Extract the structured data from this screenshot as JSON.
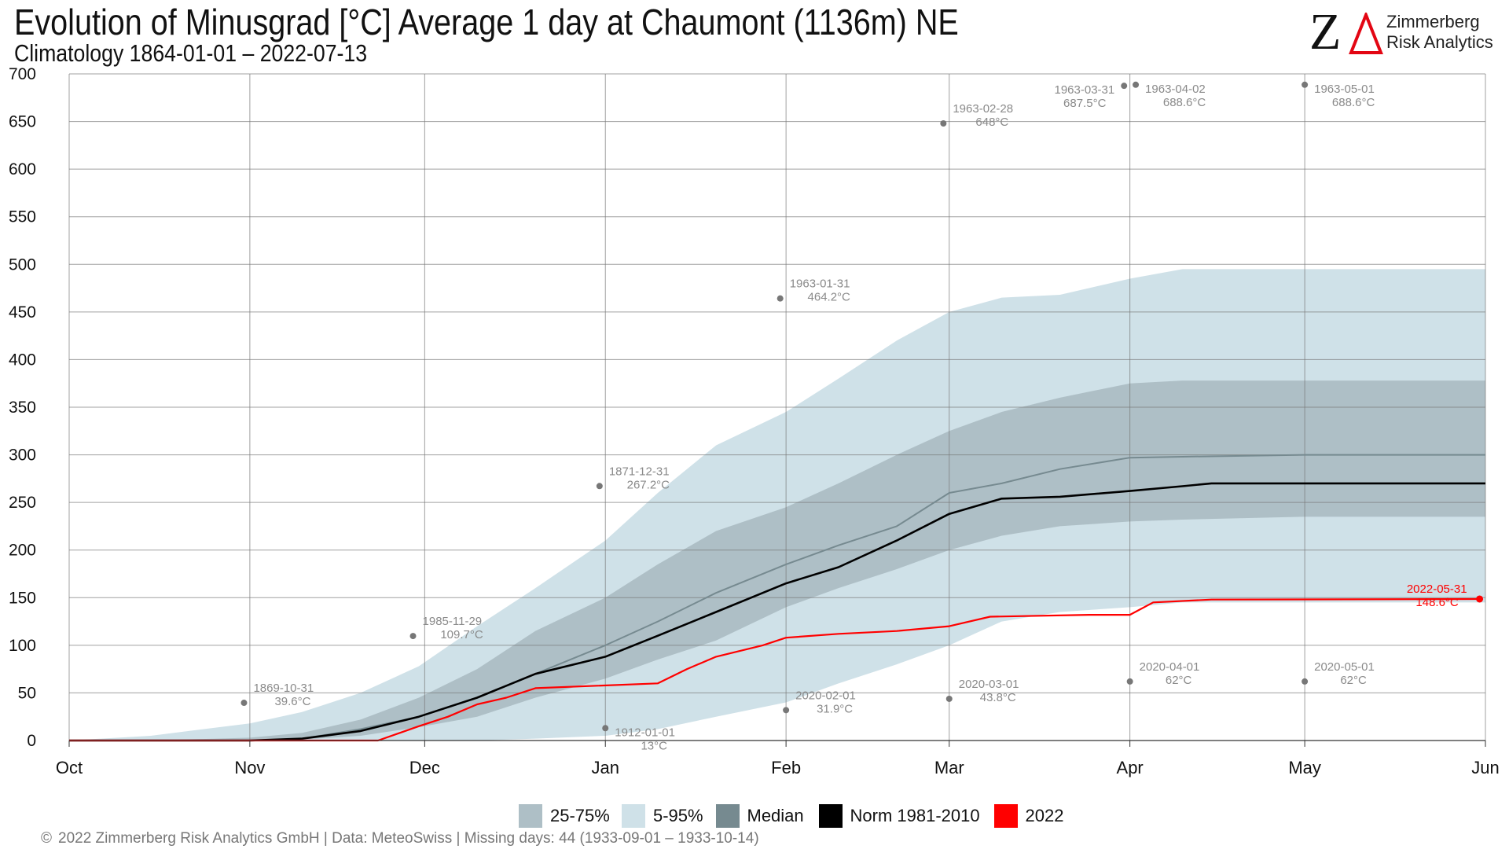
{
  "header": {
    "title": "Evolution of Minusgrad [°C] Average 1 day at Chaumont (1136m) NE",
    "subtitle": "Climatology 1864-01-01 – 2022-07-13"
  },
  "logo": {
    "mark_letter": "Z",
    "mark_color": "#e30613",
    "line1": "Zimmerberg",
    "line2": "Risk Analytics"
  },
  "footer": {
    "copyright_symbol": "©",
    "text": "2022 Zimmerberg Risk Analytics GmbH | Data: MeteoSwiss | Missing days: 44 (1933-09-01 – 1933-10-14)"
  },
  "chart_data": {
    "type": "area",
    "x_axis": {
      "type": "date",
      "start": "2021-10-01",
      "end": "2022-06-01",
      "tick_labels": [
        "Oct",
        "Nov",
        "Dec",
        "Jan",
        "Feb",
        "Mar",
        "Apr",
        "May",
        "Jun"
      ],
      "tick_dates": [
        "2021-10-01",
        "2021-11-01",
        "2021-12-01",
        "2022-01-01",
        "2022-02-01",
        "2022-03-01",
        "2022-04-01",
        "2022-05-01",
        "2022-06-01"
      ]
    },
    "y_axis": {
      "ylim": [
        0,
        700
      ],
      "ticks": [
        0,
        50,
        100,
        150,
        200,
        250,
        300,
        350,
        400,
        450,
        500,
        550,
        600,
        650,
        700
      ]
    },
    "grid": true,
    "legend": {
      "placement": "bottom",
      "items": [
        {
          "label": "25-75%",
          "color": "#aebfc6",
          "kind": "box"
        },
        {
          "label": "5-95%",
          "color": "#cfe1e8",
          "kind": "box"
        },
        {
          "label": "Median",
          "color": "#768a90",
          "kind": "box"
        },
        {
          "label": "Norm 1981-2010",
          "color": "#000000",
          "kind": "box"
        },
        {
          "label": "2022",
          "color": "#ff0000",
          "kind": "box"
        }
      ]
    },
    "colors": {
      "band_5_95": "#cfe1e8",
      "band_25_75": "#aebfc6",
      "median": "#768a90",
      "norm": "#000000",
      "year_2022": "#ff0000",
      "annotation": "#8a8a8a",
      "grid": "#777777"
    },
    "series": [
      {
        "name": "5-95%",
        "kind": "band",
        "x": [
          "2021-10-01",
          "2021-10-15",
          "2021-11-01",
          "2021-11-10",
          "2021-11-20",
          "2021-11-30",
          "2021-12-10",
          "2021-12-20",
          "2022-01-01",
          "2022-01-10",
          "2022-01-20",
          "2022-02-01",
          "2022-02-10",
          "2022-02-20",
          "2022-03-01",
          "2022-03-10",
          "2022-03-20",
          "2022-04-01",
          "2022-04-10",
          "2022-05-01",
          "2022-06-01"
        ],
        "lower": [
          0,
          0,
          0,
          0,
          0,
          0,
          0,
          2,
          5,
          12,
          25,
          40,
          60,
          80,
          100,
          125,
          135,
          140,
          145,
          145,
          145
        ],
        "upper": [
          0,
          5,
          18,
          30,
          50,
          78,
          120,
          160,
          210,
          260,
          310,
          345,
          380,
          420,
          450,
          465,
          468,
          485,
          495,
          495,
          495
        ]
      },
      {
        "name": "25-75%",
        "kind": "band",
        "x": [
          "2021-10-01",
          "2021-10-15",
          "2021-11-01",
          "2021-11-10",
          "2021-11-20",
          "2021-11-30",
          "2021-12-10",
          "2021-12-20",
          "2022-01-01",
          "2022-01-10",
          "2022-01-20",
          "2022-02-01",
          "2022-02-10",
          "2022-02-20",
          "2022-03-01",
          "2022-03-10",
          "2022-03-20",
          "2022-04-01",
          "2022-04-10",
          "2022-05-01",
          "2022-06-01"
        ],
        "lower": [
          0,
          0,
          0,
          1,
          5,
          14,
          25,
          45,
          65,
          85,
          105,
          140,
          160,
          180,
          200,
          215,
          225,
          230,
          232,
          235,
          235
        ],
        "upper": [
          0,
          0,
          3,
          8,
          22,
          45,
          75,
          115,
          150,
          185,
          220,
          245,
          270,
          300,
          325,
          345,
          360,
          375,
          378,
          378,
          378
        ]
      },
      {
        "name": "Median",
        "kind": "line",
        "x": [
          "2021-10-01",
          "2021-10-15",
          "2021-11-01",
          "2021-11-10",
          "2021-11-20",
          "2021-11-30",
          "2021-12-10",
          "2021-12-20",
          "2022-01-01",
          "2022-01-10",
          "2022-01-20",
          "2022-02-01",
          "2022-02-10",
          "2022-02-20",
          "2022-03-01",
          "2022-03-10",
          "2022-03-20",
          "2022-04-01",
          "2022-04-10",
          "2022-05-01",
          "2022-06-01"
        ],
        "values": [
          0,
          0,
          0,
          2,
          12,
          25,
          45,
          70,
          100,
          125,
          155,
          185,
          205,
          225,
          260,
          270,
          285,
          297,
          298,
          300,
          300
        ]
      },
      {
        "name": "Norm 1981-2010",
        "kind": "line",
        "x": [
          "2021-10-01",
          "2021-10-15",
          "2021-11-01",
          "2021-11-10",
          "2021-11-20",
          "2021-11-30",
          "2021-12-10",
          "2021-12-20",
          "2022-01-01",
          "2022-01-10",
          "2022-01-20",
          "2022-02-01",
          "2022-02-10",
          "2022-02-20",
          "2022-03-01",
          "2022-03-10",
          "2022-03-20",
          "2022-04-01",
          "2022-04-10",
          "2022-04-15",
          "2022-05-01",
          "2022-06-01"
        ],
        "values": [
          0,
          0,
          0,
          2,
          10,
          25,
          45,
          70,
          88,
          110,
          135,
          165,
          182,
          210,
          238,
          254,
          256,
          262,
          267,
          270,
          270,
          270
        ]
      },
      {
        "name": "2022",
        "kind": "line",
        "x": [
          "2021-10-01",
          "2021-11-01",
          "2021-11-23",
          "2021-11-30",
          "2021-12-05",
          "2021-12-10",
          "2021-12-15",
          "2021-12-20",
          "2022-01-10",
          "2022-01-15",
          "2022-01-20",
          "2022-01-28",
          "2022-02-01",
          "2022-02-10",
          "2022-02-20",
          "2022-03-01",
          "2022-03-08",
          "2022-03-25",
          "2022-04-01",
          "2022-04-05",
          "2022-04-15",
          "2022-05-31"
        ],
        "values": [
          0,
          0,
          0,
          15,
          25,
          38,
          45,
          55,
          60,
          75,
          88,
          100,
          108,
          112,
          115,
          120,
          130,
          132,
          132,
          145,
          148,
          148.6
        ]
      }
    ],
    "annotations": [
      {
        "date": "1869-10-31",
        "x": "2021-10-31",
        "y": 39.6,
        "value": "39.6°C",
        "pos": "above"
      },
      {
        "date": "1985-11-29",
        "x": "2021-11-29",
        "y": 109.7,
        "value": "109.7°C",
        "pos": "above"
      },
      {
        "date": "1871-12-31",
        "x": "2021-12-31",
        "y": 267.2,
        "value": "267.2°C",
        "pos": "above"
      },
      {
        "date": "1912-01-01",
        "x": "2022-01-01",
        "y": 13,
        "value": "13°C",
        "pos": "below"
      },
      {
        "date": "1963-01-31",
        "x": "2022-01-31",
        "y": 464.2,
        "value": "464.2°C",
        "pos": "above"
      },
      {
        "date": "2020-02-01",
        "x": "2022-02-01",
        "y": 31.9,
        "value": "31.9°C",
        "pos": "above"
      },
      {
        "date": "1963-02-28",
        "x": "2022-02-28",
        "y": 648,
        "value": "648°C",
        "pos": "above"
      },
      {
        "date": "2020-03-01",
        "x": "2022-03-01",
        "y": 43.8,
        "value": "43.8°C",
        "pos": "above"
      },
      {
        "date": "1963-03-31",
        "x": "2022-03-31",
        "y": 687.5,
        "value": "687.5°C",
        "pos": "left"
      },
      {
        "date": "1963-04-02",
        "x": "2022-04-02",
        "y": 688.6,
        "value": "688.6°C",
        "pos": "below"
      },
      {
        "date": "2020-04-01",
        "x": "2022-04-01",
        "y": 62,
        "value": "62°C",
        "pos": "above"
      },
      {
        "date": "1963-05-01",
        "x": "2022-05-01",
        "y": 688.6,
        "value": "688.6°C",
        "pos": "below"
      },
      {
        "date": "2020-05-01",
        "x": "2022-05-01",
        "y": 62,
        "value": "62°C",
        "pos": "above"
      },
      {
        "date": "2022-05-31",
        "x": "2022-05-31",
        "y": 148.6,
        "value": "148.6°C",
        "pos": "left",
        "highlight": true
      }
    ]
  }
}
